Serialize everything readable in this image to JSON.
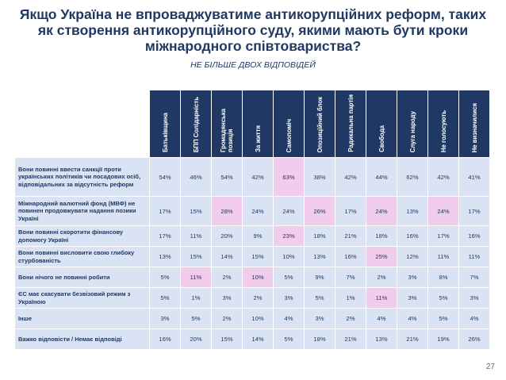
{
  "title": "Якщо Україна не впроваджуватиме антикорупційних реформ, таких як створення антикорупційного суду, якими мають бути кроки міжнародного співтовариства?",
  "subtitle": "НЕ БІЛЬШЕ ДВОХ ВІДПОВІДЕЙ",
  "page_number": "27",
  "colors": {
    "header_bg": "#1f3864",
    "cell_bg": "#dae3f3",
    "highlight_bg": "#f2ccec",
    "text": "#1f3864"
  },
  "chart_data": {
    "type": "table",
    "title": "Якщо Україна не впроваджуватиме антикорупційних реформ, таких як створення антикорупційного суду, якими мають бути кроки міжнародного співтовариства?",
    "subtitle": "НЕ БІЛЬШЕ ДВОХ ВІДПОВІДЕЙ",
    "columns": [
      "Батьківщина",
      "БПП Солідарність",
      "Громадянська позиція",
      "За життя",
      "Самопоміч",
      "Опозиційний блок",
      "Радикальна партія",
      "Свобода",
      "Слуга народу",
      "Не голосують",
      "Не визначилися"
    ],
    "rows": [
      {
        "label": "Вони повинні ввести санкції проти українських політиків чи посадових осіб, відповідальних за відсутність реформ",
        "values": [
          "54%",
          "46%",
          "54%",
          "42%",
          "63%",
          "38%",
          "42%",
          "44%",
          "62%",
          "42%",
          "41%"
        ],
        "highlight": [
          false,
          false,
          false,
          false,
          true,
          false,
          false,
          false,
          false,
          false,
          false
        ]
      },
      {
        "label": "Міжнародний валютний фонд (МВФ) не повинен продовжувати надання позики Україні",
        "values": [
          "17%",
          "15%",
          "28%",
          "24%",
          "24%",
          "26%",
          "17%",
          "24%",
          "13%",
          "24%",
          "17%"
        ],
        "highlight": [
          false,
          false,
          true,
          false,
          false,
          true,
          false,
          true,
          false,
          true,
          false
        ]
      },
      {
        "label": "Вони повинні скоротити фінансову допомогу Україні",
        "values": [
          "17%",
          "11%",
          "20%",
          "9%",
          "23%",
          "18%",
          "21%",
          "18%",
          "16%",
          "17%",
          "16%"
        ],
        "highlight": [
          false,
          false,
          false,
          false,
          true,
          false,
          false,
          false,
          false,
          false,
          false
        ]
      },
      {
        "label": "Вони повинні висловити свою глибоку стурбованість",
        "values": [
          "13%",
          "15%",
          "14%",
          "15%",
          "10%",
          "13%",
          "16%",
          "25%",
          "12%",
          "11%",
          "11%"
        ],
        "highlight": [
          false,
          false,
          false,
          false,
          false,
          false,
          false,
          true,
          false,
          false,
          false
        ]
      },
      {
        "label": "Вони нічого не повинні робити",
        "values": [
          "5%",
          "11%",
          "2%",
          "10%",
          "5%",
          "9%",
          "7%",
          "2%",
          "3%",
          "8%",
          "7%"
        ],
        "highlight": [
          false,
          true,
          false,
          true,
          false,
          false,
          false,
          false,
          false,
          false,
          false
        ]
      },
      {
        "label": "ЄС має скасувати безвізовий режим з Україною",
        "values": [
          "5%",
          "1%",
          "3%",
          "2%",
          "3%",
          "5%",
          "1%",
          "11%",
          "3%",
          "5%",
          "3%"
        ],
        "highlight": [
          false,
          false,
          false,
          false,
          false,
          false,
          false,
          true,
          false,
          false,
          false
        ]
      },
      {
        "label": "Інше",
        "values": [
          "3%",
          "5%",
          "2%",
          "10%",
          "4%",
          "3%",
          "2%",
          "4%",
          "4%",
          "5%",
          "4%"
        ],
        "highlight": [
          false,
          false,
          false,
          false,
          false,
          false,
          false,
          false,
          false,
          false,
          false
        ]
      },
      {
        "label": "Важко відповісти / Немає відповіді",
        "values": [
          "16%",
          "20%",
          "15%",
          "14%",
          "5%",
          "18%",
          "21%",
          "13%",
          "21%",
          "19%",
          "26%"
        ],
        "highlight": [
          false,
          false,
          false,
          false,
          false,
          false,
          false,
          false,
          false,
          false,
          false
        ]
      }
    ]
  }
}
